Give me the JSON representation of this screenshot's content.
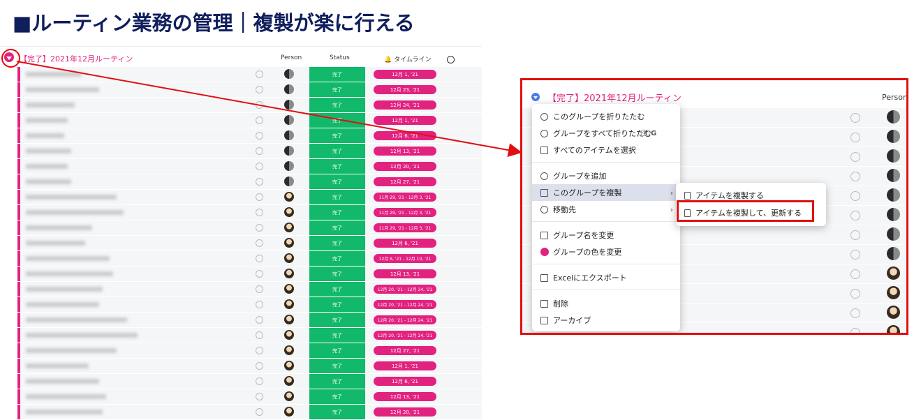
{
  "title": "■ルーティン業務の管理｜複製が楽に行える",
  "board": {
    "group_title": "【完了】2021年12月ルーティン",
    "columns": {
      "person": "Person",
      "status": "Status",
      "timeline": "タイムライン"
    },
    "rows": [
      {
        "status": "完了",
        "timeline": "12月 1, '21",
        "avatar": "a"
      },
      {
        "status": "完了",
        "timeline": "12月 23, '21",
        "avatar": "a"
      },
      {
        "status": "完了",
        "timeline": "12月 24, '21",
        "avatar": "a"
      },
      {
        "status": "完了",
        "timeline": "12月 1, '21",
        "avatar": "a"
      },
      {
        "status": "完了",
        "timeline": "12月 6, '21",
        "avatar": "a"
      },
      {
        "status": "完了",
        "timeline": "12月 13, '21",
        "avatar": "a"
      },
      {
        "status": "完了",
        "timeline": "12月 20, '21",
        "avatar": "a"
      },
      {
        "status": "完了",
        "timeline": "12月 27, '21",
        "avatar": "a"
      },
      {
        "status": "完了",
        "timeline": "11月 29, '21 - 12月 3, '21",
        "avatar": "b"
      },
      {
        "status": "完了",
        "timeline": "11月 29, '21 - 12月 3, '21",
        "avatar": "b"
      },
      {
        "status": "完了",
        "timeline": "11月 29, '21 - 12月 3, '21",
        "avatar": "b"
      },
      {
        "status": "完了",
        "timeline": "12月 6, '21",
        "avatar": "b"
      },
      {
        "status": "完了",
        "timeline": "12月 6, '21 - 12月 10, '21",
        "avatar": "b"
      },
      {
        "status": "完了",
        "timeline": "12月 13, '21",
        "avatar": "b"
      },
      {
        "status": "完了",
        "timeline": "12月 20, '21 - 12月 24, '21",
        "avatar": "b"
      },
      {
        "status": "完了",
        "timeline": "12月 20, '21 - 12月 24, '21",
        "avatar": "b"
      },
      {
        "status": "完了",
        "timeline": "12月 20, '21 - 12月 24, '21",
        "avatar": "b"
      },
      {
        "status": "完了",
        "timeline": "12月 20, '21 - 12月 24, '21",
        "avatar": "b"
      },
      {
        "status": "完了",
        "timeline": "12月 27, '21",
        "avatar": "b"
      },
      {
        "status": "完了",
        "timeline": "12月 1, '21",
        "avatar": "b"
      },
      {
        "status": "完了",
        "timeline": "12月 6, '21",
        "avatar": "b"
      },
      {
        "status": "完了",
        "timeline": "12月 13, '21",
        "avatar": "b"
      },
      {
        "status": "完了",
        "timeline": "12月 20, '21",
        "avatar": "b"
      }
    ]
  },
  "zoom": {
    "group_title": "【完了】2021年12月ルーティン",
    "person_header": "Person",
    "row_avatars": [
      "a",
      "a",
      "a",
      "a",
      "a",
      "a",
      "a",
      "a",
      "b",
      "b",
      "b",
      "b"
    ],
    "menu": {
      "collapse_group": "このグループを折りたたむ",
      "collapse_all": "グループをすべて折りたたむ",
      "collapse_all_shortcut_mod": "⌘",
      "collapse_all_shortcut_key": "G",
      "select_all": "すべてのアイテムを選択",
      "add_group": "グループを追加",
      "duplicate_group": "このグループを複製",
      "move_to": "移動先",
      "rename_group": "グループ名を変更",
      "change_color": "グループの色を変更",
      "export_excel": "Excelにエクスポート",
      "delete": "削除",
      "archive": "アーカイブ"
    },
    "submenu": {
      "duplicate_items": "アイテムを複製する",
      "duplicate_and_update": "アイテムを複製して、更新する"
    }
  },
  "colors": {
    "accent": "#e2227f",
    "done": "#12b96a",
    "highlight_border": "#e01010",
    "title": "#0f1e5c"
  }
}
